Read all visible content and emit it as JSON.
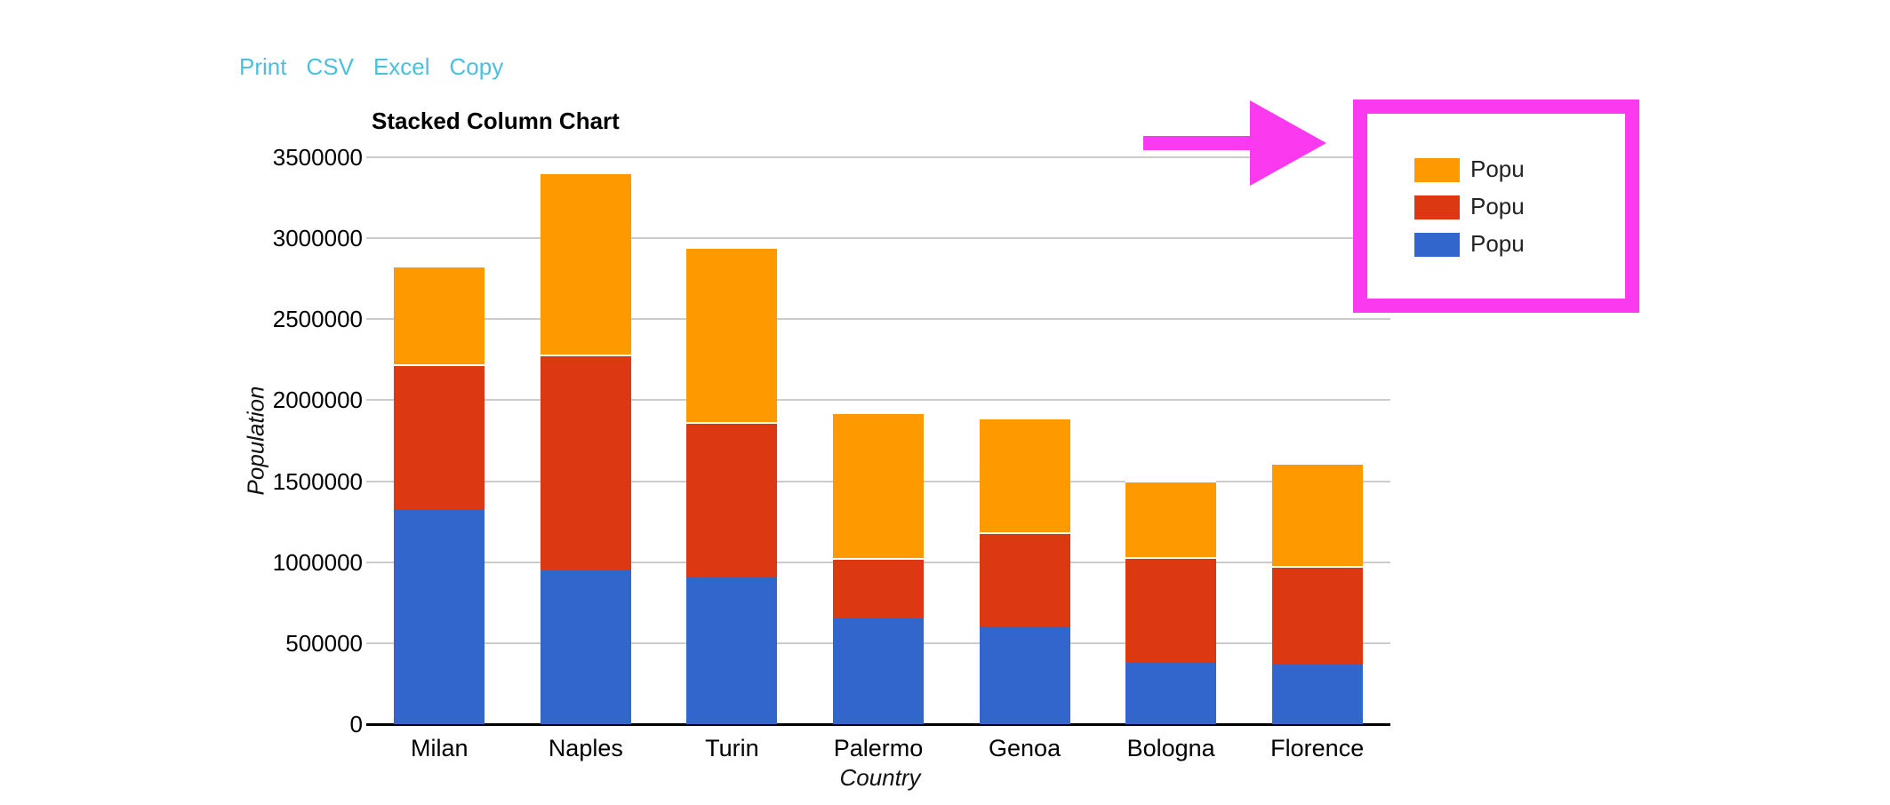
{
  "toolbar": {
    "links": [
      "Print",
      "CSV",
      "Excel",
      "Copy"
    ],
    "link_color": "#4bc0dc"
  },
  "chart_data": {
    "type": "bar",
    "stacked": true,
    "title": "Stacked Column Chart",
    "xlabel": "Country",
    "ylabel": "Population",
    "categories": [
      "Milan",
      "Naples",
      "Turin",
      "Palermo",
      "Genoa",
      "Bologna",
      "Florence"
    ],
    "series": [
      {
        "name": "Popu",
        "color": "#3366cc",
        "values": [
          1325000,
          950000,
          905000,
          655000,
          605000,
          385000,
          370000
        ]
      },
      {
        "name": "Popu",
        "color": "#dc3912",
        "values": [
          895000,
          1330000,
          960000,
          370000,
          580000,
          645000,
          605000
        ]
      },
      {
        "name": "Popu",
        "color": "#ff9900",
        "values": [
          610000,
          1125000,
          1080000,
          900000,
          705000,
          475000,
          640000
        ]
      }
    ],
    "stack_totals": [
      2830000,
      3405000,
      2945000,
      1925000,
      1890000,
      1505000,
      1615000
    ],
    "ylim": [
      0,
      3500000
    ],
    "yticks": [
      "3500000",
      "3000000",
      "2500000",
      "2000000",
      "1500000",
      "1000000",
      "500000",
      "0"
    ],
    "grid": true,
    "gridline_color": "#cccccc",
    "axis_line_color": "#000000",
    "legend_position": "right-top",
    "legend_items": [
      {
        "label": "Popu",
        "color": "#ff9900"
      },
      {
        "label": "Popu",
        "color": "#dc3912"
      },
      {
        "label": "Popu",
        "color": "#3366cc"
      }
    ]
  },
  "annotation": {
    "color": "#fb3af0",
    "shape": "arrow-pointing-to-legend-box"
  }
}
